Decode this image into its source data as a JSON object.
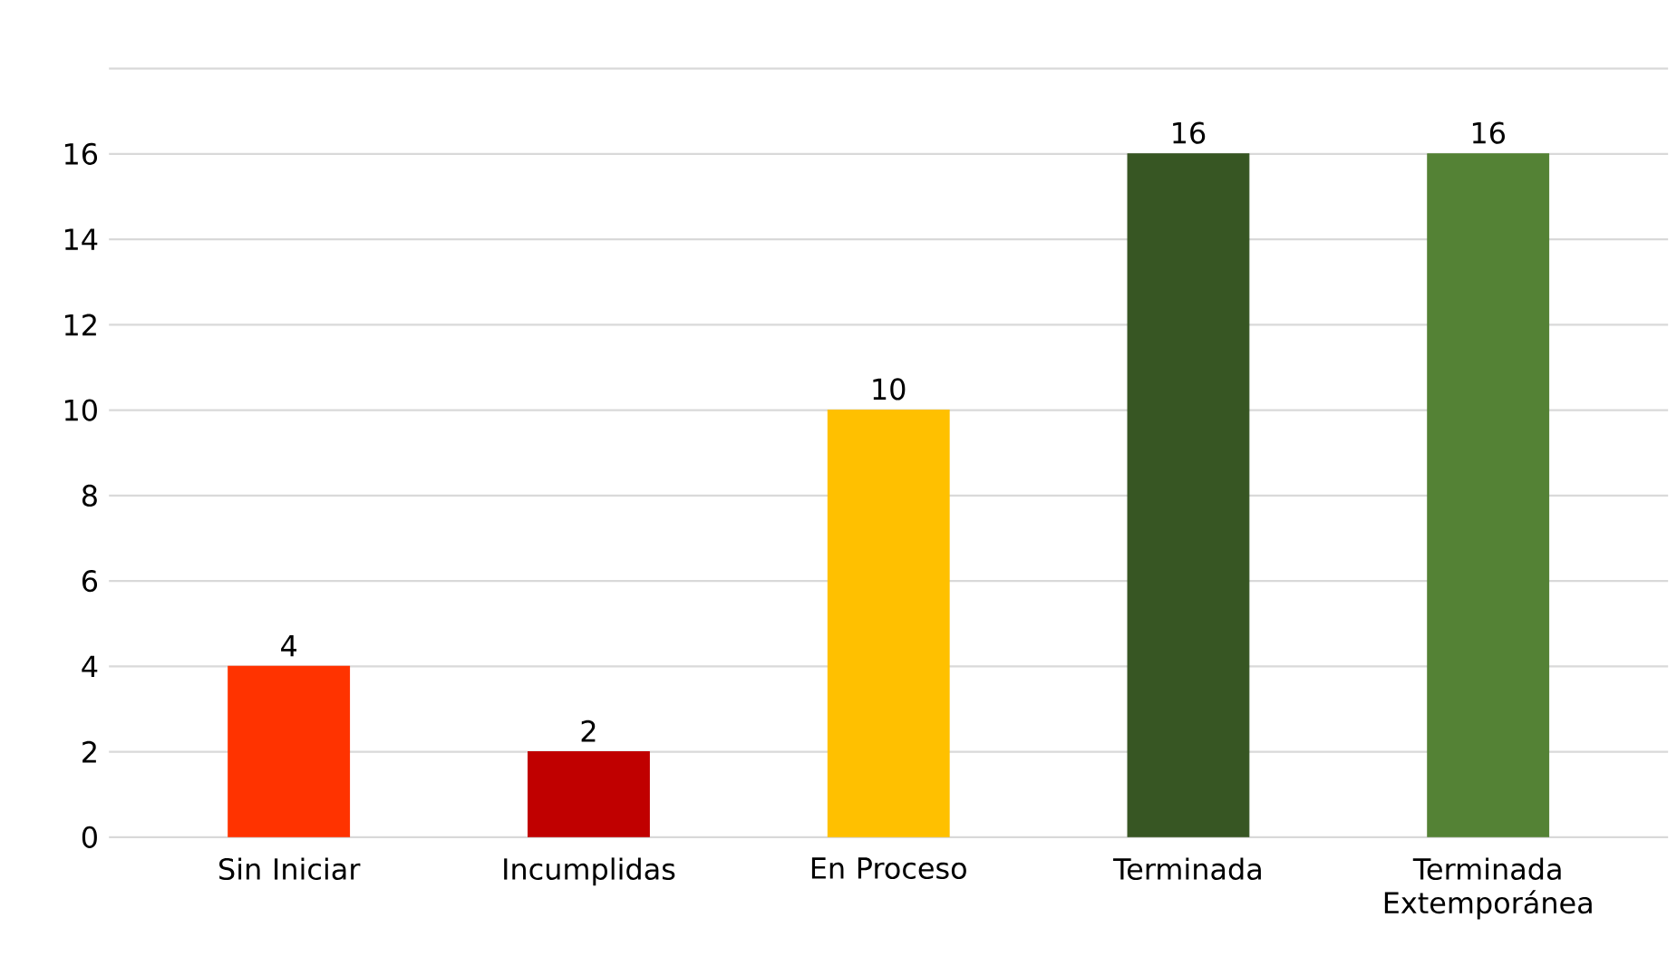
{
  "chart_data": {
    "type": "bar",
    "categories": [
      "Sin Iniciar",
      "Incumplidas",
      "En Proceso",
      "Terminada",
      "Terminada Extemporánea"
    ],
    "values": [
      4,
      2,
      10,
      16,
      16
    ],
    "colors": [
      "#ff3300",
      "#c00000",
      "#ffc000",
      "#375623",
      "#548235"
    ],
    "ylim": [
      0,
      18
    ],
    "yticks": [
      0,
      2,
      4,
      6,
      8,
      10,
      12,
      14,
      16,
      {
        "value": 18,
        "label": null
      }
    ],
    "grid": "y",
    "data_labels": true
  }
}
